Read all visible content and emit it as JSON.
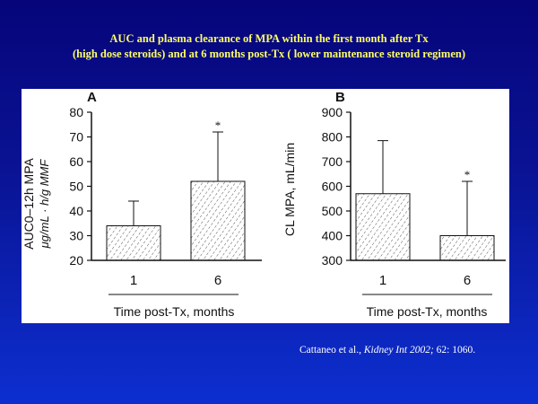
{
  "slide": {
    "title_line1": "AUC and plasma clearance of MPA within the first month after Tx",
    "title_line2": "(high dose steroids) and at 6 months post-Tx ( lower maintenance steroid regimen)",
    "citation_authors": "Cattaneo et al., ",
    "citation_journal": "Kidney Int 2002;",
    "citation_ref": " 62: 1060."
  },
  "colors": {
    "background_top": "#06057a",
    "background_bottom": "#0d2fd0",
    "title": "#ffff66",
    "figure_bg": "#ffffff",
    "ink": "#111111"
  },
  "chart_data": [
    {
      "panel_label": "A",
      "type": "bar",
      "ylabel_line1": "AUC0–12h MPA",
      "ylabel_line2": "μg/mL · h/g MMF",
      "xlabel": "Time post-Tx, months",
      "categories": [
        "1",
        "6"
      ],
      "values": [
        34,
        52
      ],
      "error_upper": [
        44,
        72
      ],
      "significance": [
        "",
        "*"
      ],
      "ylim": [
        20,
        80
      ],
      "yticks": [
        20,
        30,
        40,
        50,
        60,
        70,
        80
      ]
    },
    {
      "panel_label": "B",
      "type": "bar",
      "ylabel": "CL MPA, mL/min",
      "xlabel": "Time post-Tx, months",
      "categories": [
        "1",
        "6"
      ],
      "values": [
        570,
        400
      ],
      "error_upper": [
        785,
        620
      ],
      "significance": [
        "",
        "*"
      ],
      "ylim": [
        300,
        900
      ],
      "yticks": [
        300,
        400,
        500,
        600,
        700,
        800,
        900
      ]
    }
  ]
}
